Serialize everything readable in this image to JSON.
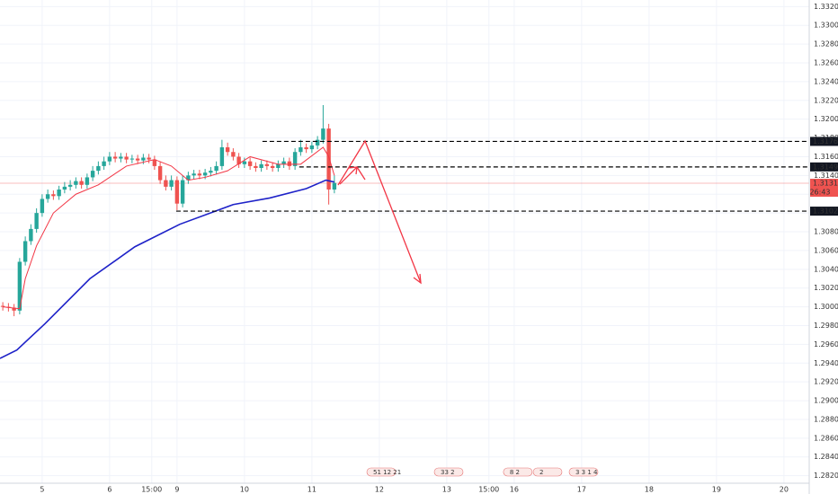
{
  "chart_data": {
    "type": "candlestick",
    "up_color": "#26a69a",
    "down_color": "#ef5350",
    "grid": true,
    "xlim": [
      -15,
      273
    ],
    "ylim": [
      1.2812,
      1.3327
    ],
    "xticks": [
      {
        "value": 0,
        "label": "5"
      },
      {
        "value": 24,
        "label": "6"
      },
      {
        "value": 39,
        "label": "15:00"
      },
      {
        "value": 48,
        "label": "9"
      },
      {
        "value": 72,
        "label": "10"
      },
      {
        "value": 96,
        "label": "11"
      },
      {
        "value": 120,
        "label": "12"
      },
      {
        "value": 144,
        "label": "13"
      },
      {
        "value": 159,
        "label": "15:00"
      },
      {
        "value": 168,
        "label": "16"
      },
      {
        "value": 192,
        "label": "17"
      },
      {
        "value": 216,
        "label": "18"
      },
      {
        "value": 240,
        "label": "19"
      },
      {
        "value": 264,
        "label": "20"
      }
    ],
    "yticks": [
      {
        "value": 1.282,
        "label": "1.28200"
      },
      {
        "value": 1.284,
        "label": "1.28400"
      },
      {
        "value": 1.286,
        "label": "1.28600"
      },
      {
        "value": 1.288,
        "label": "1.28800"
      },
      {
        "value": 1.29,
        "label": "1.29000"
      },
      {
        "value": 1.292,
        "label": "1.29200"
      },
      {
        "value": 1.294,
        "label": "1.29400"
      },
      {
        "value": 1.296,
        "label": "1.29600"
      },
      {
        "value": 1.298,
        "label": "1.29800"
      },
      {
        "value": 1.3,
        "label": "1.30000"
      },
      {
        "value": 1.302,
        "label": "1.30200"
      },
      {
        "value": 1.304,
        "label": "1.30400"
      },
      {
        "value": 1.306,
        "label": "1.30600"
      },
      {
        "value": 1.308,
        "label": "1.30800"
      },
      {
        "value": 1.31,
        "label": "1.31000"
      },
      {
        "value": 1.312,
        "label": "1.31200"
      },
      {
        "value": 1.314,
        "label": "1.31400"
      },
      {
        "value": 1.316,
        "label": "1.31600"
      },
      {
        "value": 1.318,
        "label": "1.31800"
      },
      {
        "value": 1.32,
        "label": "1.32000"
      },
      {
        "value": 1.322,
        "label": "1.32200"
      },
      {
        "value": 1.324,
        "label": "1.32400"
      },
      {
        "value": 1.326,
        "label": "1.32600"
      },
      {
        "value": 1.328,
        "label": "1.32800"
      },
      {
        "value": 1.33,
        "label": "1.33000"
      },
      {
        "value": 1.332,
        "label": "1.33200"
      }
    ],
    "candles": {
      "x": [
        -14,
        -12,
        -10,
        -8,
        -6,
        -4,
        -2,
        0,
        2,
        4,
        6,
        8,
        10,
        12,
        14,
        16,
        18,
        20,
        22,
        24,
        26,
        28,
        30,
        32,
        34,
        36,
        38,
        40,
        42,
        44,
        46,
        48,
        50,
        52,
        54,
        56,
        58,
        60,
        62,
        64,
        66,
        68,
        70,
        72,
        74,
        76,
        78,
        80,
        82,
        84,
        86,
        88,
        90,
        92,
        94,
        96,
        98,
        100,
        102,
        104
      ],
      "open": [
        1.3001,
        1.3,
        1.2999,
        1.2996,
        1.3048,
        1.307,
        1.3083,
        1.31,
        1.3115,
        1.312,
        1.3118,
        1.3125,
        1.3128,
        1.313,
        1.3134,
        1.313,
        1.3138,
        1.3145,
        1.315,
        1.3155,
        1.316,
        1.3158,
        1.316,
        1.3157,
        1.3158,
        1.3156,
        1.3159,
        1.3157,
        1.315,
        1.3135,
        1.3128,
        1.3135,
        1.311,
        1.3135,
        1.314,
        1.3142,
        1.314,
        1.3143,
        1.3145,
        1.315,
        1.317,
        1.3165,
        1.316,
        1.3152,
        1.3155,
        1.315,
        1.3148,
        1.3152,
        1.315,
        1.3148,
        1.3152,
        1.3155,
        1.315,
        1.3165,
        1.317,
        1.3168,
        1.3172,
        1.3178,
        1.319,
        1.3125
      ],
      "high": [
        1.3005,
        1.3004,
        1.3003,
        1.3052,
        1.3075,
        1.3088,
        1.3105,
        1.312,
        1.3125,
        1.3124,
        1.3129,
        1.3133,
        1.3135,
        1.3138,
        1.3138,
        1.3142,
        1.315,
        1.3155,
        1.316,
        1.3165,
        1.3165,
        1.3164,
        1.3164,
        1.3162,
        1.3162,
        1.3163,
        1.3163,
        1.3161,
        1.3155,
        1.314,
        1.314,
        1.3139,
        1.314,
        1.3144,
        1.3146,
        1.3146,
        1.3147,
        1.3149,
        1.3155,
        1.3178,
        1.3175,
        1.3169,
        1.3164,
        1.3159,
        1.3159,
        1.3154,
        1.3156,
        1.3156,
        1.3154,
        1.3156,
        1.3159,
        1.3159,
        1.3169,
        1.3178,
        1.3174,
        1.3176,
        1.3182,
        1.3215,
        1.3195,
        1.314
      ],
      "low": [
        1.2996,
        1.2995,
        1.299,
        1.2992,
        1.3044,
        1.3066,
        1.3079,
        1.3096,
        1.3111,
        1.3114,
        1.3114,
        1.3121,
        1.3124,
        1.3126,
        1.3126,
        1.3126,
        1.3134,
        1.3141,
        1.3146,
        1.3151,
        1.3154,
        1.3154,
        1.3153,
        1.3153,
        1.3152,
        1.3152,
        1.3153,
        1.3146,
        1.3131,
        1.3124,
        1.3124,
        1.3103,
        1.3106,
        1.3131,
        1.3136,
        1.3136,
        1.3136,
        1.3139,
        1.3141,
        1.3146,
        1.3161,
        1.3156,
        1.3148,
        1.3148,
        1.3146,
        1.3144,
        1.3144,
        1.3146,
        1.3144,
        1.3144,
        1.3148,
        1.3146,
        1.3146,
        1.3161,
        1.3164,
        1.3164,
        1.3168,
        1.3174,
        1.3109,
        1.3121
      ],
      "close": [
        1.3,
        1.2999,
        1.2996,
        1.3048,
        1.307,
        1.3083,
        1.31,
        1.3115,
        1.312,
        1.3118,
        1.3125,
        1.3128,
        1.313,
        1.3134,
        1.313,
        1.3138,
        1.3145,
        1.315,
        1.3155,
        1.316,
        1.3158,
        1.316,
        1.3157,
        1.3158,
        1.3156,
        1.3159,
        1.3157,
        1.315,
        1.3135,
        1.3128,
        1.3135,
        1.311,
        1.3135,
        1.314,
        1.3142,
        1.314,
        1.3143,
        1.3145,
        1.315,
        1.317,
        1.3165,
        1.316,
        1.3152,
        1.3155,
        1.315,
        1.3148,
        1.3152,
        1.315,
        1.3148,
        1.3152,
        1.3155,
        1.315,
        1.3165,
        1.317,
        1.3168,
        1.3172,
        1.3178,
        1.319,
        1.3125,
        1.3132
      ]
    },
    "lines": [
      {
        "color": "#f23645",
        "x": [
          -14,
          -8,
          -6,
          -2,
          4,
          12,
          20,
          30,
          40,
          46,
          52,
          58,
          66,
          74,
          84,
          92,
          100,
          102,
          104
        ],
        "values": [
          1.3,
          1.2998,
          1.303,
          1.3065,
          1.31,
          1.312,
          1.313,
          1.315,
          1.3157,
          1.315,
          1.3135,
          1.3138,
          1.3145,
          1.316,
          1.3152,
          1.3152,
          1.317,
          1.316,
          1.314
        ]
      },
      {
        "color": "#1e22c8",
        "x": [
          -15,
          -9,
          1,
          17,
          33,
          49,
          68,
          81,
          94,
          101,
          104
        ],
        "values": [
          1.2945,
          1.2954,
          1.2982,
          1.303,
          1.3064,
          1.3088,
          1.3109,
          1.3116,
          1.3126,
          1.3135,
          1.3133
        ]
      }
    ],
    "levels": [
      {
        "from": 78.4,
        "value": 1.31763,
        "label": "1.31763"
      },
      {
        "from": 91.5,
        "value": 1.31491,
        "label": "1.31491"
      },
      {
        "from": 47.7,
        "value": 1.3102,
        "label": "1.31020"
      }
    ],
    "last_price": {
      "value": 1.31317,
      "label": "1.31317",
      "countdown": "26:43",
      "color": "#ef5350"
    },
    "events": [
      {
        "x": 117.8,
        "label": "51 12 21"
      },
      {
        "x": 141.8,
        "label": "33 2"
      },
      {
        "x": 166.4,
        "label": "8 2"
      },
      {
        "x": 177,
        "label": "2"
      },
      {
        "x": 189.8,
        "label": "3 3 1 4"
      }
    ]
  }
}
